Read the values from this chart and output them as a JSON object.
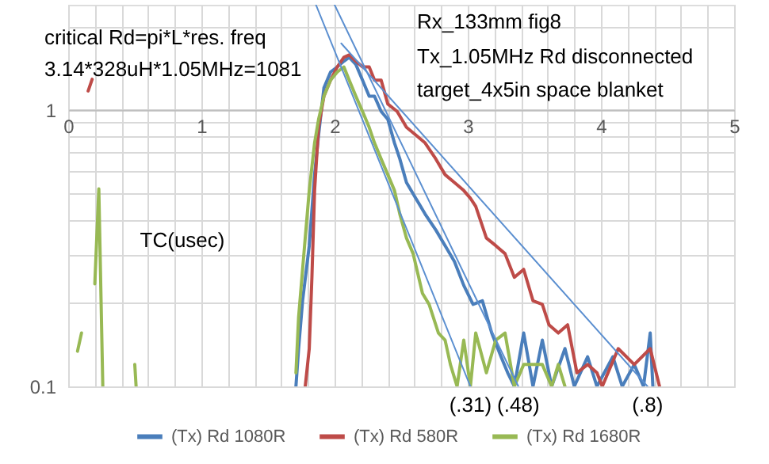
{
  "chart_data": {
    "type": "line",
    "xlabel": "TC(usec)",
    "annotations": [
      "critical Rd=pi*L*res. freq",
      "3.14*328uH*1.05MHz=1081",
      "Rx_133mm fig8",
      "Tx_1.05MHz Rd disconnected",
      "target_4x5in space blanket",
      {
        "text": "(.31)",
        "x": 3.02,
        "y": 0.1
      },
      {
        "text": "(.48)",
        "x": 3.38,
        "y": 0.1
      },
      {
        "text": "(.8)",
        "x": 4.35,
        "y": 0.1
      }
    ],
    "series": [
      {
        "name": "(Tx) Rd 1080R",
        "color": "#4a7ebb",
        "x": [
          1.71,
          1.73,
          1.76,
          1.81,
          1.85,
          1.88,
          1.92,
          1.97,
          2.02,
          2.07,
          2.11,
          2.16,
          2.21,
          2.26,
          2.3,
          2.35,
          2.4,
          2.45,
          2.49,
          2.54,
          2.61,
          2.68,
          2.76,
          2.83,
          2.9,
          2.97,
          3.04,
          3.11,
          3.18,
          3.25,
          3.3,
          3.35,
          3.42,
          3.49,
          3.56,
          3.63,
          3.73,
          3.8,
          3.9,
          3.97,
          4.09,
          4.16,
          4.25,
          4.32,
          4.37,
          4.39
        ],
        "values": [
          0.1,
          0.137,
          0.204,
          0.323,
          0.583,
          0.811,
          1.2,
          1.37,
          1.43,
          1.5,
          1.55,
          1.46,
          1.28,
          1.12,
          1.12,
          0.987,
          0.924,
          0.759,
          0.665,
          0.546,
          0.479,
          0.42,
          0.368,
          0.323,
          0.283,
          0.232,
          0.198,
          0.204,
          0.156,
          0.128,
          0.112,
          0.1,
          0.156,
          0.1,
          0.147,
          0.1,
          0.137,
          0.1,
          0.128,
          0.1,
          0.128,
          0.1,
          0.12,
          0.1,
          0.156,
          0.1
        ]
      },
      {
        "name": "(Tx) Rd 580R",
        "color": "#be4b48",
        "x": [
          0.15,
          0.18,
          1.0,
          1.78,
          1.81,
          1.83,
          1.85,
          1.88,
          1.92,
          1.97,
          2.02,
          2.07,
          2.11,
          2.16,
          2.21,
          2.26,
          2.3,
          2.35,
          2.4,
          2.47,
          2.54,
          2.61,
          2.68,
          2.76,
          2.83,
          2.9,
          2.97,
          3.02,
          3.06,
          3.14,
          3.21,
          3.28,
          3.35,
          3.42,
          3.49,
          3.56,
          3.61,
          3.68,
          3.75,
          3.82,
          3.9,
          3.97,
          4.01,
          4.13,
          4.25,
          4.37,
          4.44
        ],
        "values": [
          1.17,
          1.29,
          null,
          0.1,
          0.137,
          0.248,
          0.511,
          0.865,
          1.12,
          1.28,
          1.43,
          1.55,
          1.58,
          1.5,
          1.43,
          1.43,
          1.28,
          1.28,
          1.05,
          0.987,
          0.865,
          0.811,
          0.759,
          0.665,
          0.583,
          0.546,
          0.511,
          0.479,
          0.448,
          0.344,
          0.323,
          0.302,
          0.248,
          0.265,
          0.204,
          0.198,
          0.167,
          0.156,
          0.167,
          0.112,
          0.12,
          0.112,
          0.1,
          0.137,
          0.12,
          0.137,
          0.1
        ]
      },
      {
        "name": "(Tx) Rd 1680R",
        "color": "#98b954",
        "x": [
          0.07,
          0.1,
          0.15,
          0.2,
          0.23,
          0.26,
          0.38,
          0.5,
          0.51,
          1.0,
          1.71,
          1.73,
          1.76,
          1.81,
          1.85,
          1.88,
          1.92,
          1.97,
          2.02,
          2.07,
          2.11,
          2.16,
          2.21,
          2.26,
          2.3,
          2.35,
          2.4,
          2.45,
          2.49,
          2.54,
          2.59,
          2.66,
          2.71,
          2.78,
          2.83,
          2.87,
          2.92,
          2.97,
          3.02,
          3.06,
          3.14,
          3.21,
          3.28,
          3.35,
          3.42,
          3.49,
          3.56,
          3.63,
          3.68,
          3.73
        ],
        "values": [
          0.134,
          0.156,
          null,
          0.235,
          0.518,
          0.1,
          null,
          0.12,
          0.1,
          null,
          0.112,
          0.178,
          0.265,
          0.511,
          0.759,
          0.924,
          1.12,
          1.28,
          1.37,
          1.43,
          1.28,
          1.12,
          0.987,
          0.865,
          0.759,
          0.665,
          0.583,
          0.511,
          0.42,
          0.344,
          0.302,
          0.217,
          0.198,
          0.156,
          0.147,
          0.12,
          0.1,
          0.147,
          0.1,
          0.156,
          0.112,
          0.147,
          0.156,
          0.1,
          0.12,
          0.12,
          0.12,
          0.1,
          0.12,
          0.1
        ]
      },
      {
        "type": "line",
        "color": "#5b8fd0",
        "x": [
          1.86,
          3.02
        ],
        "values": [
          2.4,
          0.1
        ]
      },
      {
        "type": "line",
        "color": "#5b8fd0",
        "x": [
          2.0,
          3.38
        ],
        "values": [
          2.4,
          0.1
        ]
      },
      {
        "type": "line",
        "color": "#5b8fd0",
        "x": [
          2.05,
          4.35
        ],
        "values": [
          1.74,
          0.1
        ]
      }
    ],
    "xlim": [
      0,
      5
    ],
    "xticks": [
      0,
      {
        "value": 0.2,
        "label": null
      },
      {
        "value": 0.4,
        "label": null
      },
      {
        "value": 0.6,
        "label": null
      },
      {
        "value": 0.8,
        "label": null
      },
      1,
      {
        "value": 1.2,
        "label": null
      },
      {
        "value": 1.4,
        "label": null
      },
      {
        "value": 1.6,
        "label": null
      },
      {
        "value": 1.8,
        "label": null
      },
      2,
      {
        "value": 2.2,
        "label": null
      },
      {
        "value": 2.4,
        "label": null
      },
      {
        "value": 2.6,
        "label": null
      },
      {
        "value": 2.8,
        "label": null
      },
      3,
      {
        "value": 3.2,
        "label": null
      },
      {
        "value": 3.4,
        "label": null
      },
      {
        "value": 3.6,
        "label": null
      },
      {
        "value": 3.8,
        "label": null
      },
      4,
      {
        "value": 4.2,
        "label": null
      },
      {
        "value": 4.4,
        "label": null
      },
      {
        "value": 4.6,
        "label": null
      },
      {
        "value": 4.8,
        "label": null
      },
      5
    ],
    "ylim": [
      0.1,
      2.4
    ],
    "yticks": [
      0.1,
      {
        "value": 0.2,
        "label": null
      },
      {
        "value": 0.3,
        "label": null
      },
      {
        "value": 0.4,
        "label": null
      },
      {
        "value": 0.5,
        "label": null
      },
      {
        "value": 0.6,
        "label": null
      },
      {
        "value": 0.7,
        "label": null
      },
      {
        "value": 0.8,
        "label": null
      },
      {
        "value": 0.9,
        "label": null
      },
      1,
      {
        "value": 2,
        "label": null
      }
    ],
    "log": "y",
    "grid": true,
    "legend": "bottom"
  }
}
